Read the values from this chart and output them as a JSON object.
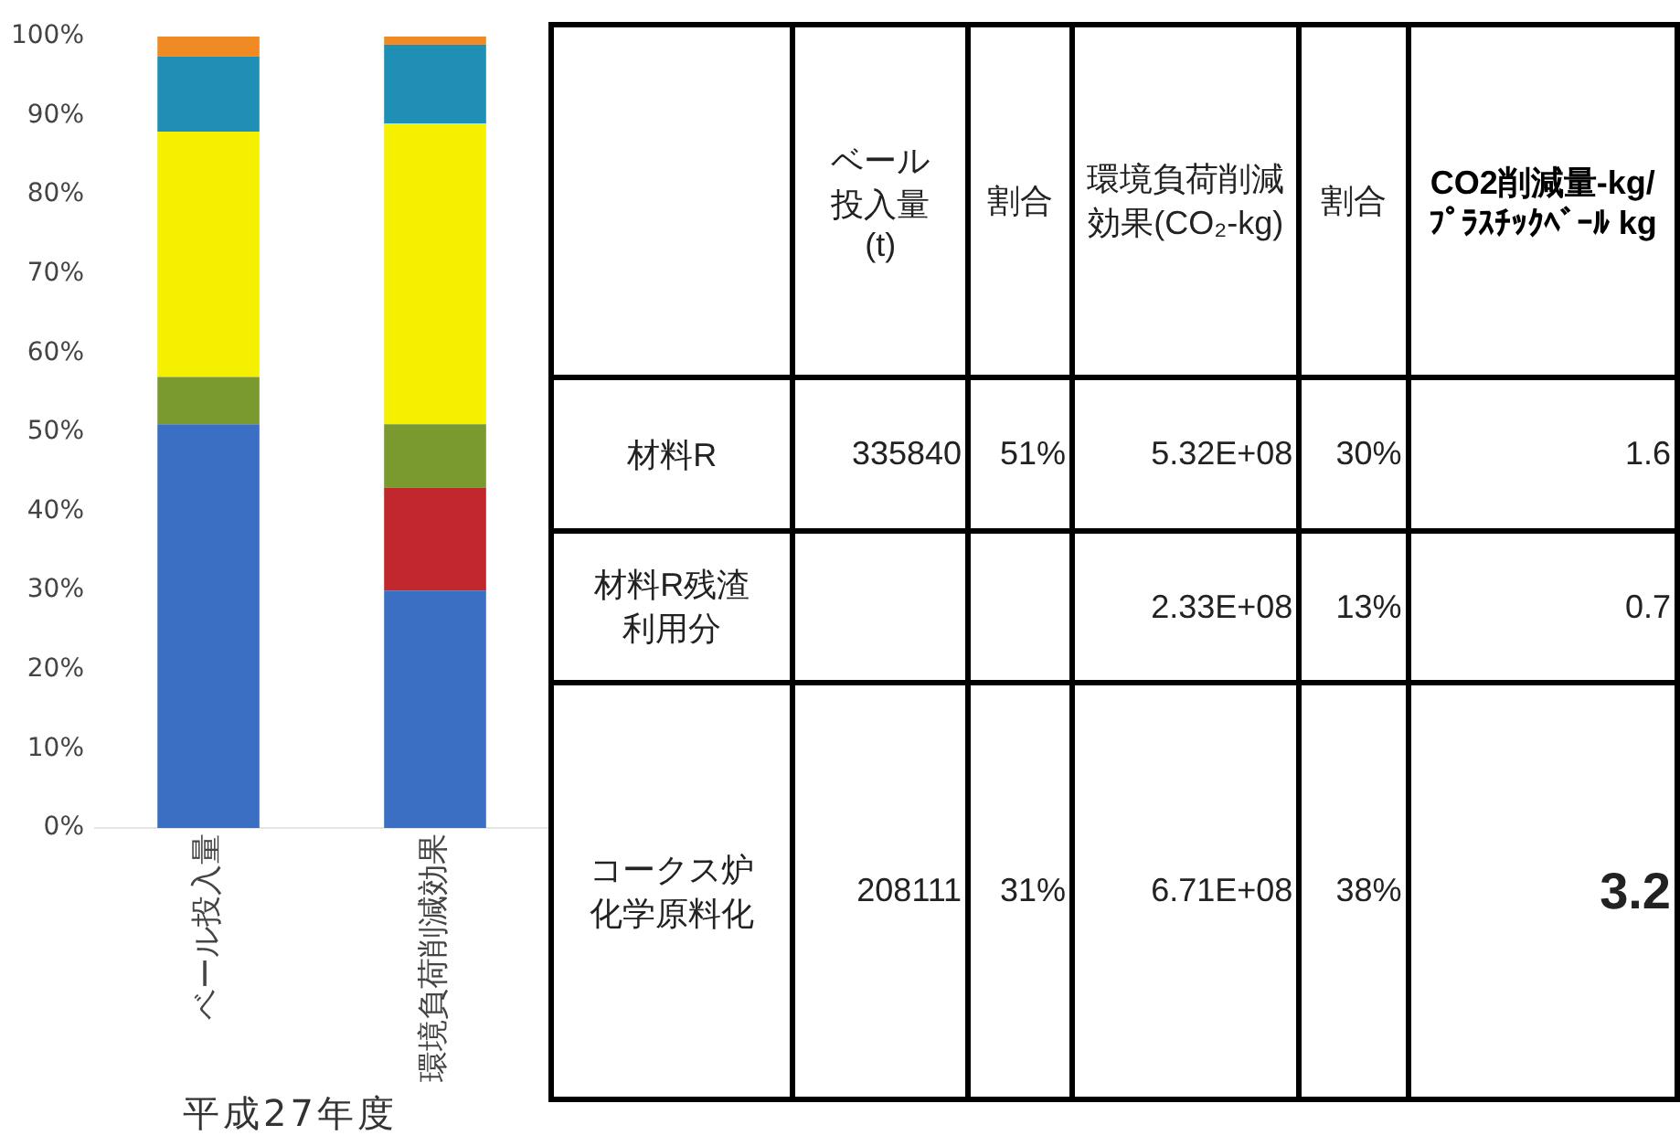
{
  "chart_data": [
    {
      "type": "bar",
      "stacked": true,
      "categories": [
        "ベール投入量",
        "環境負荷削減効果"
      ],
      "ylim": [
        0,
        100
      ],
      "yticks": [
        {
          "value": 0,
          "label": "0%"
        },
        {
          "value": 10,
          "label": "10%"
        },
        {
          "value": 20,
          "label": "20%"
        },
        {
          "value": 30,
          "label": "30%"
        },
        {
          "value": 40,
          "label": "40%"
        },
        {
          "value": 50,
          "label": "50%"
        },
        {
          "value": 60,
          "label": "60%"
        },
        {
          "value": 70,
          "label": "70%"
        },
        {
          "value": 80,
          "label": "80%"
        },
        {
          "value": 90,
          "label": "90%"
        },
        {
          "value": 100,
          "label": "100%"
        }
      ],
      "series": [
        {
          "color": "#3a6fc4",
          "values": [
            51,
            30
          ]
        },
        {
          "color": "#c0282d",
          "values": [
            0,
            13
          ]
        },
        {
          "color": "#7a9a30",
          "values": [
            6,
            8
          ]
        },
        {
          "color": "#f5f000",
          "values": [
            31,
            38
          ]
        },
        {
          "color": "#1f8fb5",
          "values": [
            9.5,
            10
          ]
        },
        {
          "color": "#f08a24",
          "values": [
            2.5,
            1
          ]
        }
      ],
      "annotations": [
        "平成27年度"
      ],
      "legend": false,
      "grid": false
    },
    {
      "type": "other",
      "categories": [
        null,
        "ベール投入量(t)",
        "割合",
        "環境負荷削減効果(CO₂-kg)",
        "割合",
        "CO2削減量-kg/\nﾌﾟﾗｽﾁｯｸﾍﾞｰﾙ kg"
      ],
      "y_categories": [
        "材料R",
        "材料R残渣利用分",
        "コークス炉化学原料化"
      ],
      "cell_labels": [
        [
          "335840",
          "51%",
          "5.32E+08",
          "30%",
          "1.6"
        ],
        [
          null,
          null,
          "2.33E+08",
          "13%",
          "0.7"
        ],
        [
          "208111",
          "31%",
          "6.71E+08",
          "38%",
          "3.2"
        ]
      ]
    }
  ]
}
